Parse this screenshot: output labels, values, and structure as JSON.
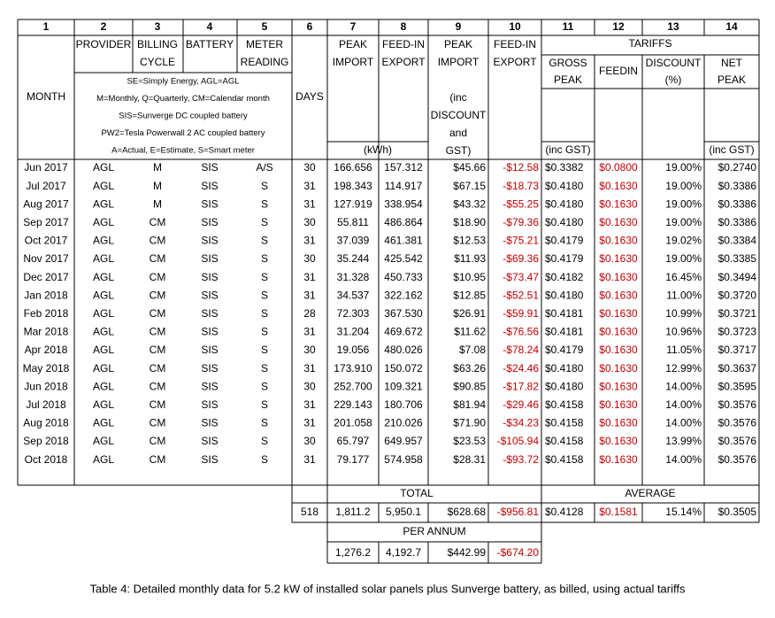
{
  "column_numbers": [
    "1",
    "2",
    "3",
    "4",
    "5",
    "6",
    "7",
    "8",
    "9",
    "10",
    "11",
    "12",
    "13",
    "14"
  ],
  "header": {
    "month": "MONTH",
    "provider": "PROVIDER",
    "billing": [
      "BILLING",
      "CYCLE"
    ],
    "battery": "BATTERY",
    "meter": [
      "METER",
      "READING"
    ],
    "days": "DAYS",
    "peak_import": [
      "PEAK",
      "IMPORT"
    ],
    "feedin_export": [
      "FEED-IN",
      "EXPORT"
    ],
    "peak_import_cost": [
      "PEAK",
      "IMPORT",
      "(inc",
      "DISCOUNT",
      "and",
      "GST)"
    ],
    "feedin_export_cost": [
      "FEED-IN",
      "EXPORT"
    ],
    "tariffs": "TARIFFS",
    "gross_peak": [
      "GROSS",
      "PEAK"
    ],
    "feedin": "FEEDIN",
    "discount": [
      "DISCOUNT",
      "(%)"
    ],
    "net_peak": [
      "NET",
      "PEAK"
    ],
    "kwh": "(kWh)",
    "inc_gst_gross": "(inc GST)",
    "inc_gst_net": "(inc GST)"
  },
  "notes": [
    "SE=Simply Energy, AGL=AGL",
    "M=Monthly, Q=Quarterly, CM=Calendar month",
    "SIS=Sunverge DC coupled battery",
    "PW2=Tesla Powerwall 2 AC coupled battery",
    "A=Actual, E=Estimate, S=Smart meter"
  ],
  "rows": [
    [
      "Jun 2017",
      "AGL",
      "M",
      "SIS",
      "A/S",
      "30",
      "166.656",
      "157.312",
      "$45.66",
      "-$12.58",
      "$0.3382",
      "$0.0800",
      "19.00%",
      "$0.2740"
    ],
    [
      "Jul 2017",
      "AGL",
      "M",
      "SIS",
      "S",
      "31",
      "198.343",
      "114.917",
      "$67.15",
      "-$18.73",
      "$0.4180",
      "$0.1630",
      "19.00%",
      "$0.3386"
    ],
    [
      "Aug 2017",
      "AGL",
      "M",
      "SIS",
      "S",
      "31",
      "127.919",
      "338.954",
      "$43.32",
      "-$55.25",
      "$0.4180",
      "$0.1630",
      "19.00%",
      "$0.3386"
    ],
    [
      "Sep 2017",
      "AGL",
      "CM",
      "SIS",
      "S",
      "30",
      "55.811",
      "486.864",
      "$18.90",
      "-$79.36",
      "$0.4180",
      "$0.1630",
      "19.00%",
      "$0.3386"
    ],
    [
      "Oct 2017",
      "AGL",
      "CM",
      "SIS",
      "S",
      "31",
      "37.039",
      "461.381",
      "$12.53",
      "-$75.21",
      "$0.4179",
      "$0.1630",
      "19.02%",
      "$0.3384"
    ],
    [
      "Nov 2017",
      "AGL",
      "CM",
      "SIS",
      "S",
      "30",
      "35.244",
      "425.542",
      "$11.93",
      "-$69.36",
      "$0.4179",
      "$0.1630",
      "19.00%",
      "$0.3385"
    ],
    [
      "Dec 2017",
      "AGL",
      "CM",
      "SIS",
      "S",
      "31",
      "31.328",
      "450.733",
      "$10.95",
      "-$73.47",
      "$0.4182",
      "$0.1630",
      "16.45%",
      "$0.3494"
    ],
    [
      "Jan 2018",
      "AGL",
      "CM",
      "SIS",
      "S",
      "31",
      "34.537",
      "322.162",
      "$12.85",
      "-$52.51",
      "$0.4180",
      "$0.1630",
      "11.00%",
      "$0.3720"
    ],
    [
      "Feb 2018",
      "AGL",
      "CM",
      "SIS",
      "S",
      "28",
      "72.303",
      "367.530",
      "$26.91",
      "-$59.91",
      "$0.4181",
      "$0.1630",
      "10.99%",
      "$0.3721"
    ],
    [
      "Mar 2018",
      "AGL",
      "CM",
      "SIS",
      "S",
      "31",
      "31.204",
      "469.672",
      "$11.62",
      "-$76.56",
      "$0.4181",
      "$0.1630",
      "10.96%",
      "$0.3723"
    ],
    [
      "Apr 2018",
      "AGL",
      "CM",
      "SIS",
      "S",
      "30",
      "19.056",
      "480.026",
      "$7.08",
      "-$78.24",
      "$0.4179",
      "$0.1630",
      "11.05%",
      "$0.3717"
    ],
    [
      "May 2018",
      "AGL",
      "CM",
      "SIS",
      "S",
      "31",
      "173.910",
      "150.072",
      "$63.26",
      "-$24.46",
      "$0.4180",
      "$0.1630",
      "12.99%",
      "$0.3637"
    ],
    [
      "Jun 2018",
      "AGL",
      "CM",
      "SIS",
      "S",
      "30",
      "252.700",
      "109.321",
      "$90.85",
      "-$17.82",
      "$0.4180",
      "$0.1630",
      "14.00%",
      "$0.3595"
    ],
    [
      "Jul 2018",
      "AGL",
      "CM",
      "SIS",
      "S",
      "31",
      "229.143",
      "180.706",
      "$81.94",
      "-$29.46",
      "$0.4158",
      "$0.1630",
      "14.00%",
      "$0.3576"
    ],
    [
      "Aug 2018",
      "AGL",
      "CM",
      "SIS",
      "S",
      "31",
      "201.058",
      "210.026",
      "$71.90",
      "-$34.23",
      "$0.4158",
      "$0.1630",
      "14.00%",
      "$0.3576"
    ],
    [
      "Sep 2018",
      "AGL",
      "CM",
      "SIS",
      "S",
      "30",
      "65.797",
      "649.957",
      "$23.53",
      "-$105.94",
      "$0.4158",
      "$0.1630",
      "13.99%",
      "$0.3576"
    ],
    [
      "Oct 2018",
      "AGL",
      "CM",
      "SIS",
      "S",
      "31",
      "79.177",
      "574.958",
      "$28.31",
      "-$93.72",
      "$0.4158",
      "$0.1630",
      "14.00%",
      "$0.3576"
    ]
  ],
  "totals": {
    "label": "TOTAL",
    "values": [
      "518",
      "1,811.2",
      "5,950.1",
      "$628.68",
      "-$956.81"
    ]
  },
  "average": {
    "label": "AVERAGE",
    "values": [
      "$0.4128",
      "$0.1581",
      "15.14%",
      "$0.3505"
    ]
  },
  "per_annum": {
    "label": "PER ANNUM",
    "values": [
      "1,276.2",
      "4,192.7",
      "$442.99",
      "-$674.20"
    ]
  },
  "caption": "Table 4: Detailed monthly data for 5.2 kW of installed solar panels plus Sunverge battery, as billed, using actual tariffs"
}
